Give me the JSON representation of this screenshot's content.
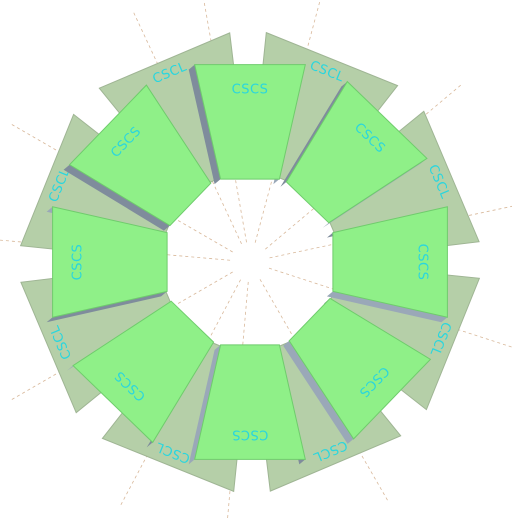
{
  "view": {
    "background": "#ffffff",
    "colors": {
      "large_fill": "#b5cfa8",
      "large_edge": "#9fb594",
      "small_fill": "#8ff088",
      "small_edge": "#6fcc6c",
      "side_face": "#9aa8b8",
      "side_dark": "#7f8c9c",
      "label": "#29d6de",
      "guide_line": "#d8b89a"
    }
  },
  "wheel": {
    "large_chambers": [
      {
        "id": "CSCL-1",
        "label": "CSCL"
      },
      {
        "id": "CSCL-2",
        "label": "CSCL"
      },
      {
        "id": "CSCL-3",
        "label": "CSCL"
      },
      {
        "id": "CSCL-4",
        "label": "CSCL"
      },
      {
        "id": "CSCL-5",
        "label": "CSCL"
      },
      {
        "id": "CSCL-6",
        "label": "CSCL"
      },
      {
        "id": "CSCL-7",
        "label": "CSCL"
      },
      {
        "id": "CSCL-8",
        "label": "CSCL"
      }
    ],
    "small_chambers": [
      {
        "id": "CSCS-1",
        "label": "CSCS"
      },
      {
        "id": "CSCS-2",
        "label": "CSCS"
      },
      {
        "id": "CSCS-3",
        "label": "CSCS"
      },
      {
        "id": "CSCS-4",
        "label": "CSCS"
      },
      {
        "id": "CSCS-5",
        "label": "CSCS"
      },
      {
        "id": "CSCS-6",
        "label": "CSCS"
      },
      {
        "id": "CSCS-7",
        "label": "CSCS"
      },
      {
        "id": "CSCS-8",
        "label": "CSCS"
      }
    ]
  }
}
